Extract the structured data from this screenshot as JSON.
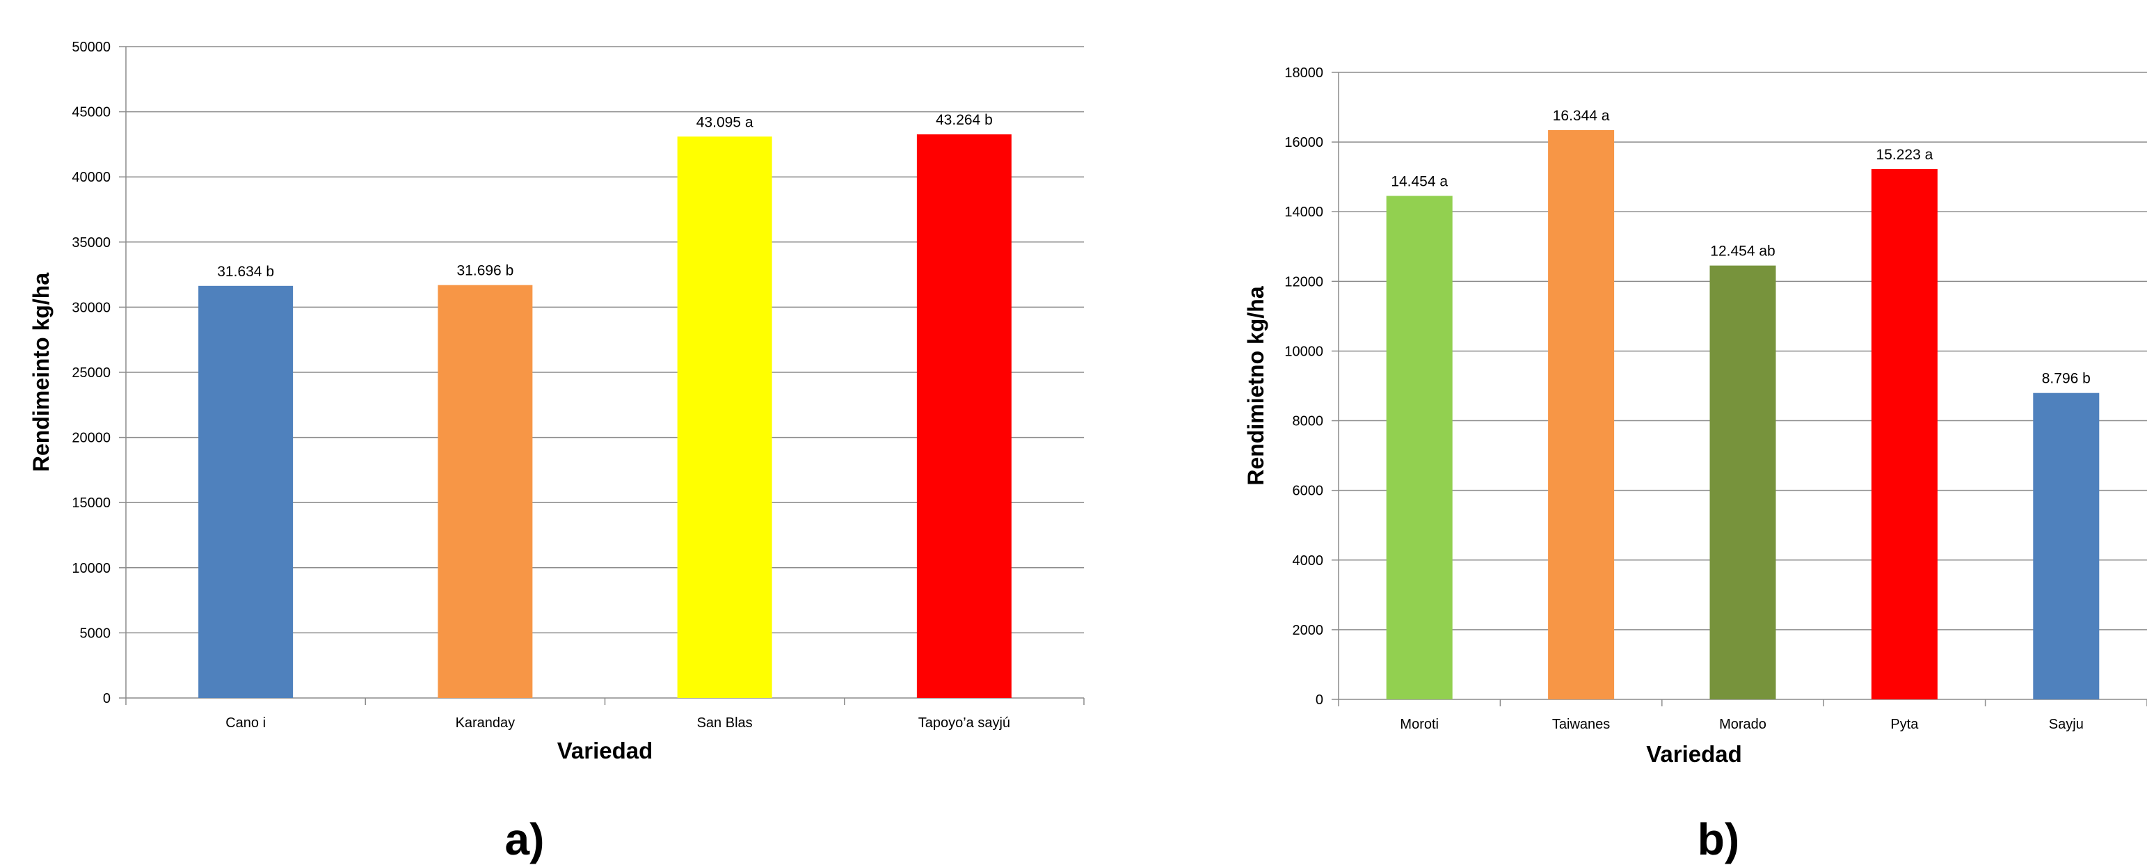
{
  "chart_data": [
    {
      "type": "bar",
      "panel_label": "a)",
      "xlabel": "Variedad",
      "ylabel": "Rendimeinto kg/ha",
      "ylim": [
        0,
        50000
      ],
      "y_ticks": [
        "0",
        "5000",
        "10000",
        "15000",
        "20000",
        "25000",
        "30000",
        "35000",
        "40000",
        "45000",
        "50000"
      ],
      "grid": true,
      "categories": [
        "Cano i",
        "Karanday",
        "San Blas",
        "Tapoyo’a sayjú"
      ],
      "values": [
        31634,
        31696,
        43095,
        43264
      ],
      "data_labels": [
        "31.634 b",
        "31.696 b",
        "43.095 a",
        "43.264 b"
      ],
      "colors": [
        "#4f81bd",
        "#f79646",
        "#ffff00",
        "#ff0000"
      ]
    },
    {
      "type": "bar",
      "panel_label": "b)",
      "xlabel": "Variedad",
      "ylabel": "Rendimietno kg/ha",
      "ylim": [
        0,
        18000
      ],
      "y_ticks": [
        "0",
        "2000",
        "4000",
        "6000",
        "8000",
        "10000",
        "12000",
        "14000",
        "16000",
        "18000"
      ],
      "grid": true,
      "categories": [
        "Moroti",
        "Taiwanes",
        "Morado",
        "Pyta",
        "Sayju"
      ],
      "values": [
        14454,
        16344,
        12454,
        15223,
        8796
      ],
      "data_labels": [
        "14.454 a",
        "16.344 a",
        "12.454 ab",
        "15.223 a",
        "8.796 b"
      ],
      "colors": [
        "#92d050",
        "#f79646",
        "#77933c",
        "#ff0000",
        "#4f81bd"
      ]
    }
  ]
}
